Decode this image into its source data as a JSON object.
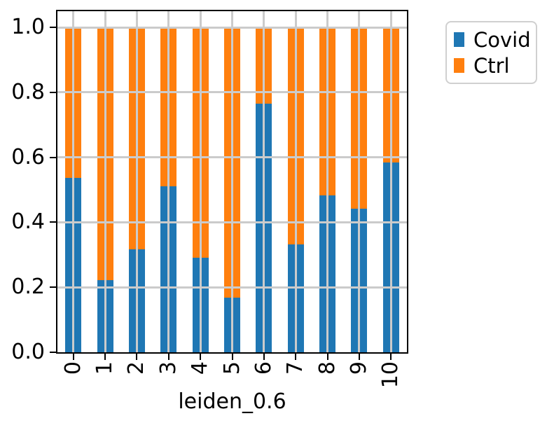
{
  "chart_data": {
    "type": "bar",
    "stacked": true,
    "normalized": true,
    "title": "",
    "xlabel": "leiden_0.6",
    "ylabel": "",
    "categories": [
      "0",
      "1",
      "2",
      "3",
      "4",
      "5",
      "6",
      "7",
      "8",
      "9",
      "10"
    ],
    "series": [
      {
        "name": "Covid",
        "color": "#1f77b4",
        "values": [
          0.537,
          0.222,
          0.318,
          0.512,
          0.292,
          0.168,
          0.765,
          0.331,
          0.484,
          0.441,
          0.585
        ]
      },
      {
        "name": "Ctrl",
        "color": "#ff7f0e",
        "values": [
          0.463,
          0.778,
          0.682,
          0.488,
          0.708,
          0.832,
          0.235,
          0.669,
          0.516,
          0.559,
          0.415
        ]
      }
    ],
    "yticks": [
      "0.0",
      "0.2",
      "0.4",
      "0.6",
      "0.8",
      "1.0"
    ],
    "ytick_values": [
      0.0,
      0.2,
      0.4,
      0.6,
      0.8,
      1.0
    ],
    "ylim": [
      0.0,
      1.05
    ],
    "grid": true,
    "grid_color": "#cbcbcb",
    "legend_position": "outside-upper-right",
    "legend": {
      "items": [
        {
          "label": "Covid",
          "color": "#1f77b4"
        },
        {
          "label": "Ctrl",
          "color": "#ff7f0e"
        }
      ]
    }
  }
}
